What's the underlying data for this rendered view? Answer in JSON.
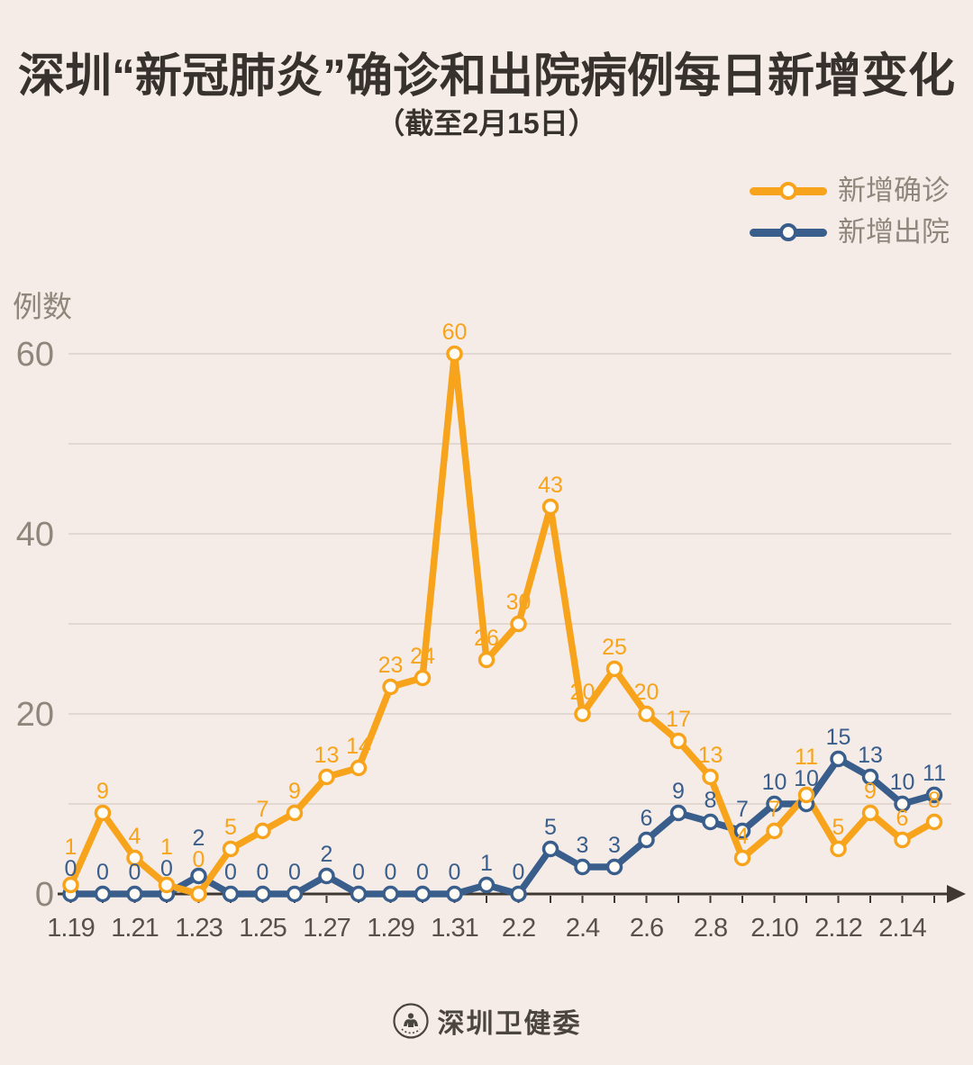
{
  "title": "深圳“新冠肺炎”确诊和出院病例每日新增变化",
  "subtitle": "（截至2月15日）",
  "y_axis_title": "例数",
  "legend": [
    {
      "label": "新增确诊",
      "color": "#f7a41c"
    },
    {
      "label": "新增出院",
      "color": "#3a5e8c"
    }
  ],
  "footer": {
    "org": "深圳卫健委"
  },
  "colors": {
    "background": "#f5ece7",
    "title_text": "#37322e",
    "grid": "#e2d8d1",
    "axis": "#3e3831",
    "y_tick_text": "#8f867c",
    "x_tick_text": "#57514a",
    "marker_fill": "#fffdf6",
    "legend_text": "#8f867c",
    "confirmed": "#f7a41c",
    "discharged": "#3a5e8c"
  },
  "chart_data": {
    "type": "line",
    "title": "深圳“新冠肺炎”确诊和出院病例每日新增变化",
    "subtitle": "（截至2月15日）",
    "ylabel": "例数",
    "ylim": [
      0,
      60
    ],
    "yticks_labeled": [
      0,
      20,
      40,
      60
    ],
    "grid_values": [
      10,
      20,
      30,
      40,
      50,
      60
    ],
    "grid": "horizontal",
    "legend_position": "top-right",
    "x": [
      "1.19",
      "1.20",
      "1.21",
      "1.22",
      "1.23",
      "1.24",
      "1.25",
      "1.26",
      "1.27",
      "1.28",
      "1.29",
      "1.30",
      "1.31",
      "2.1",
      "2.2",
      "2.3",
      "2.4",
      "2.5",
      "2.6",
      "2.7",
      "2.8",
      "2.9",
      "2.10",
      "2.11",
      "2.12",
      "2.13",
      "2.14",
      "2.15"
    ],
    "x_tick_labels_shown": [
      "1.19",
      "1.21",
      "1.23",
      "1.25",
      "1.27",
      "1.29",
      "1.31",
      "2.2",
      "2.4",
      "2.6",
      "2.8",
      "2.10",
      "2.12",
      "2.14"
    ],
    "series": [
      {
        "name": "新增确诊",
        "color": "#f7a41c",
        "values": [
          1,
          9,
          4,
          1,
          0,
          5,
          7,
          9,
          13,
          14,
          23,
          24,
          60,
          26,
          30,
          43,
          20,
          25,
          20,
          17,
          13,
          4,
          7,
          11,
          5,
          9,
          6,
          8
        ]
      },
      {
        "name": "新增出院",
        "color": "#3a5e8c",
        "values": [
          0,
          0,
          0,
          0,
          2,
          0,
          0,
          0,
          2,
          0,
          0,
          0,
          0,
          1,
          0,
          5,
          3,
          3,
          6,
          9,
          8,
          7,
          10,
          10,
          15,
          13,
          10,
          11
        ]
      }
    ]
  }
}
